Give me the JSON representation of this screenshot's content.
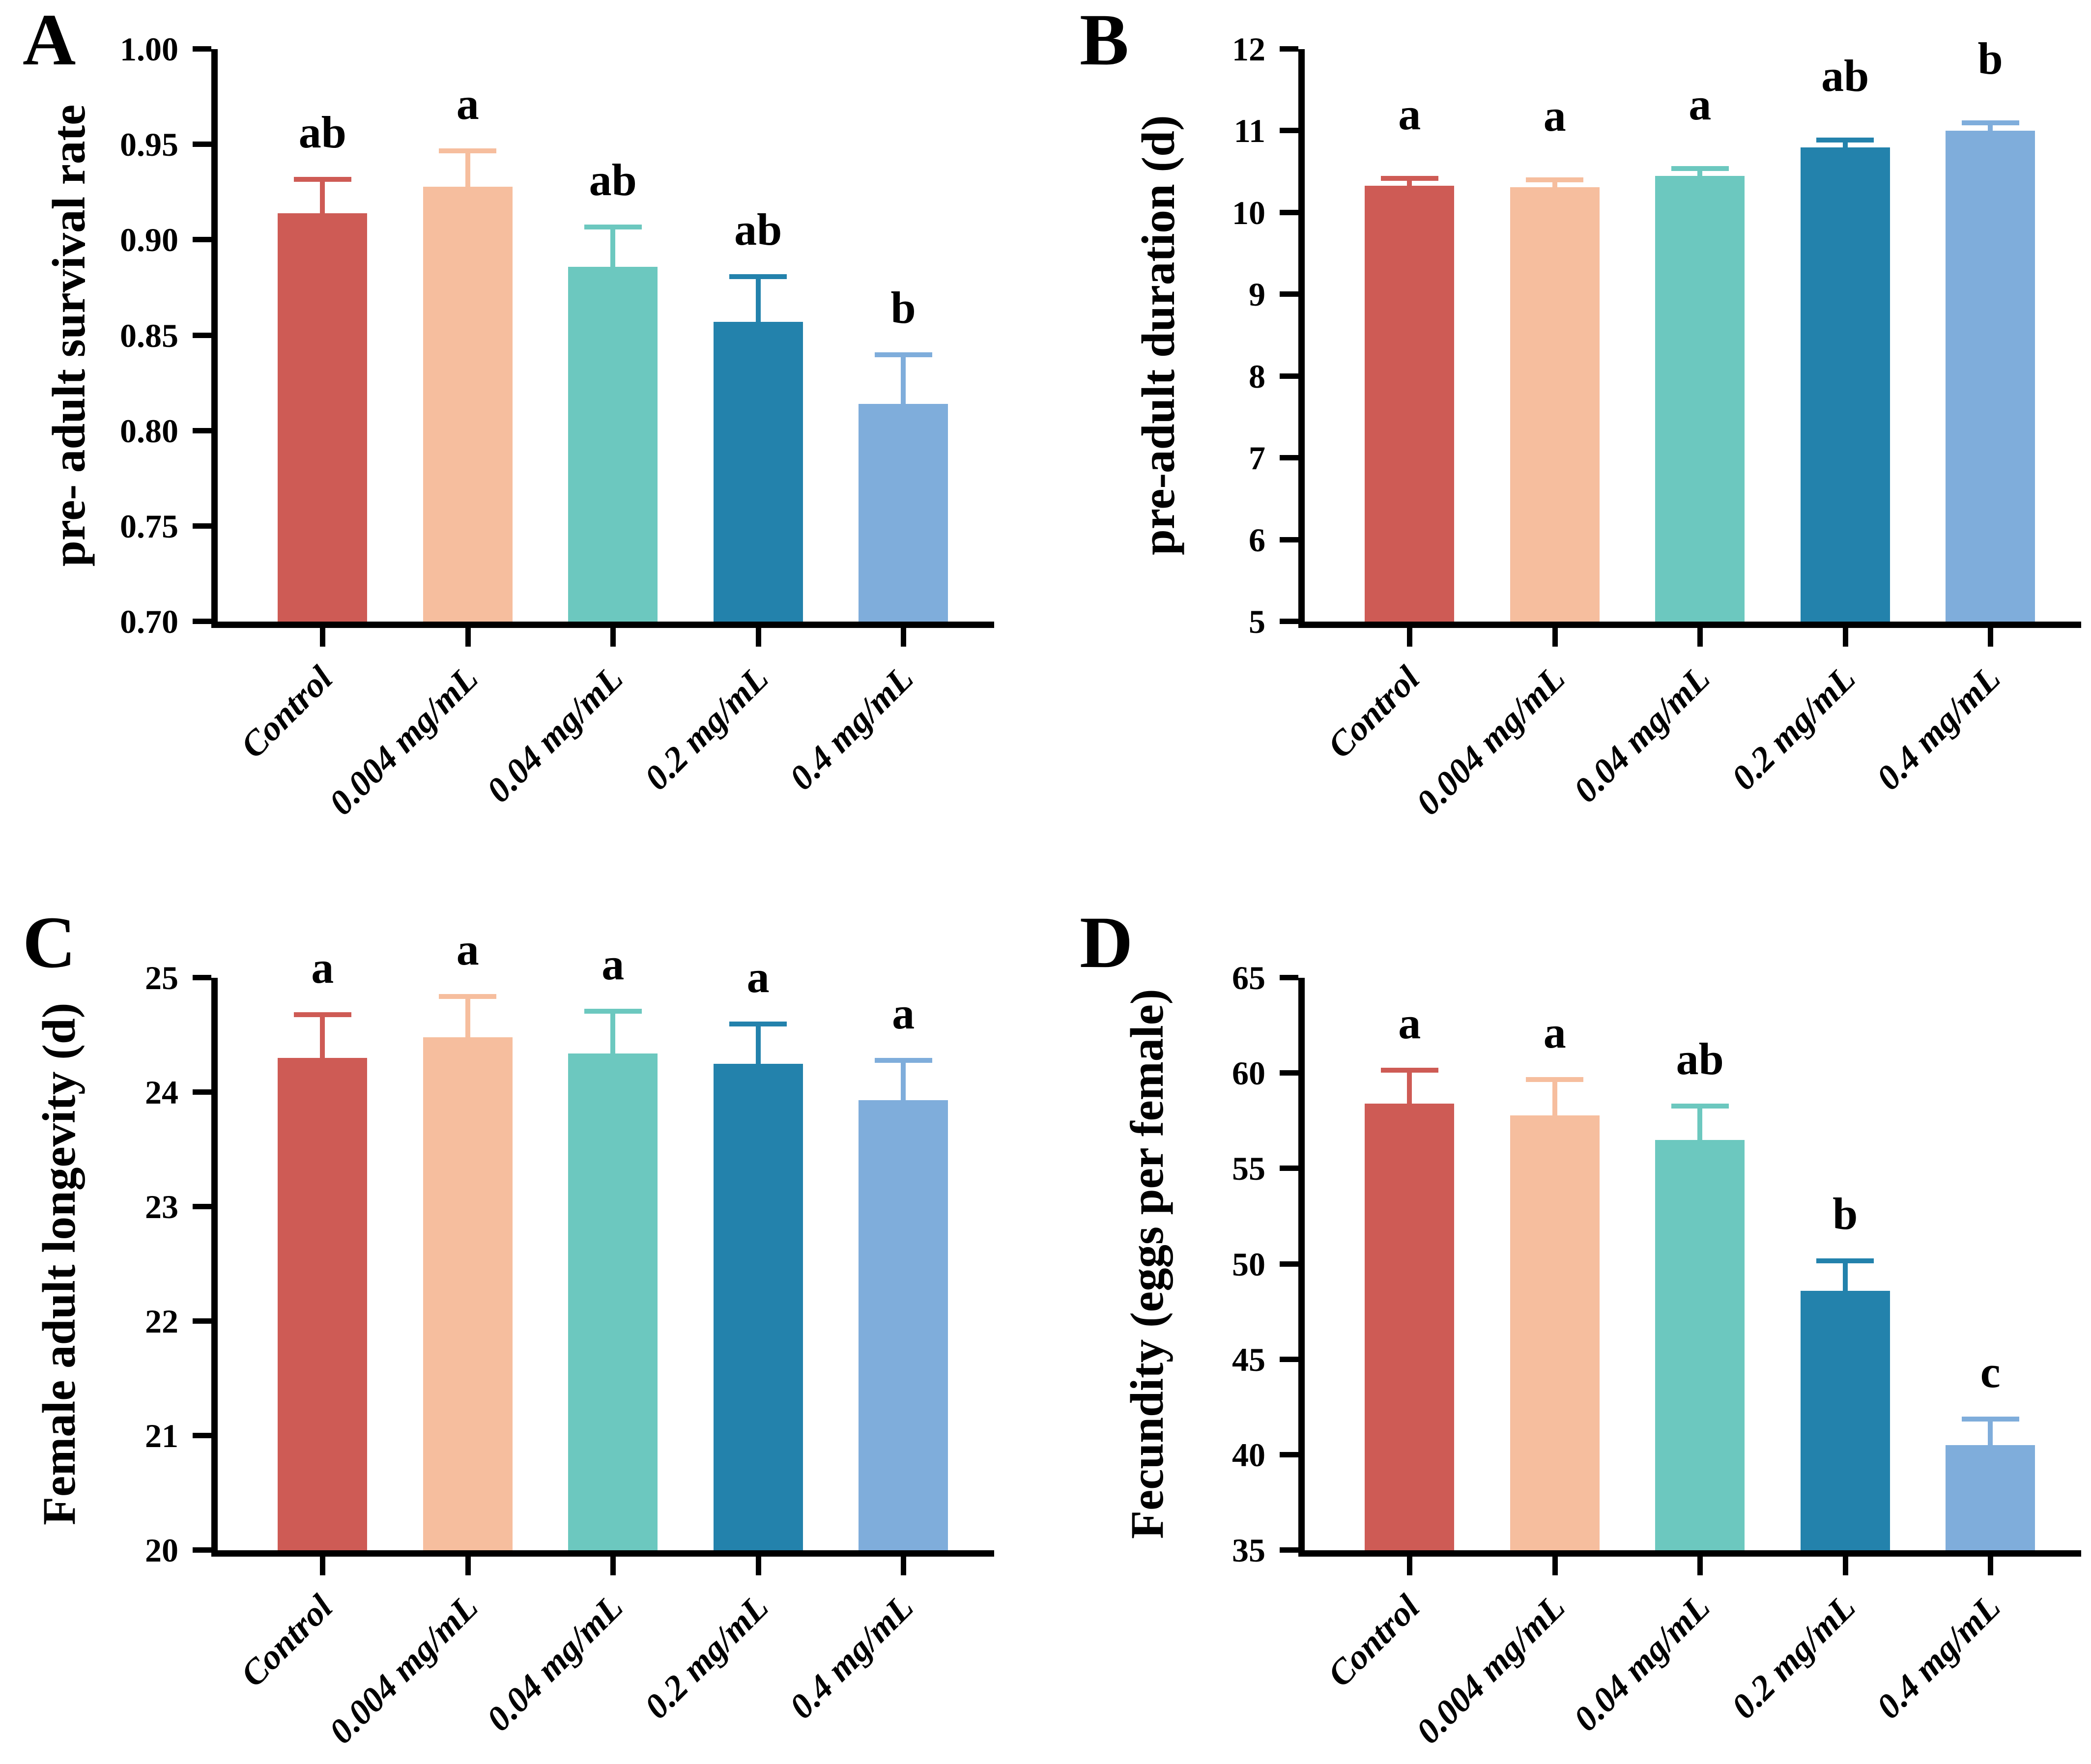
{
  "styles": {
    "background": "#ffffff",
    "axis_color": "#000000",
    "bar_colors": [
      "#CE5B55",
      "#F6BE9E",
      "#6CC8BF",
      "#2382AC",
      "#7FADDB"
    ]
  },
  "chart_data": [
    {
      "panel": "A",
      "type": "bar",
      "ylabel": "pre- adult survival rate",
      "categories": [
        "Control",
        "0.004 mg/mL",
        "0.04 mg/mL",
        "0.2 mg/mL",
        "0.4 mg/mL"
      ],
      "values": [
        0.914,
        0.928,
        0.886,
        0.857,
        0.814
      ],
      "errors_upper": [
        0.019,
        0.02,
        0.022,
        0.025,
        0.027
      ],
      "sig_letters": [
        "ab",
        "a",
        "ab",
        "ab",
        "b"
      ],
      "ylim": [
        0.7,
        1.0
      ],
      "ytick_step": 0.05,
      "ytick_decimals": 2,
      "grid": false,
      "legend": false
    },
    {
      "panel": "B",
      "type": "bar",
      "ylabel": "pre-adult duration (d)",
      "categories": [
        "Control",
        "0.004 mg/mL",
        "0.04 mg/mL",
        "0.2 mg/mL",
        "0.4 mg/mL"
      ],
      "values": [
        10.33,
        10.31,
        10.45,
        10.8,
        11.0
      ],
      "errors_upper": [
        0.12,
        0.12,
        0.12,
        0.12,
        0.13
      ],
      "sig_letters": [
        "a",
        "a",
        "a",
        "ab",
        "b"
      ],
      "ylim": [
        5,
        12
      ],
      "ytick_step": 1,
      "ytick_decimals": 0,
      "grid": false,
      "legend": false
    },
    {
      "panel": "C",
      "type": "bar",
      "ylabel": "Female adult longevity (d)",
      "categories": [
        "Control",
        "0.004 mg/mL",
        "0.04 mg/mL",
        "0.2 mg/mL",
        "0.4 mg/mL"
      ],
      "values": [
        24.3,
        24.48,
        24.34,
        24.25,
        23.93
      ],
      "errors_upper": [
        0.4,
        0.38,
        0.39,
        0.37,
        0.37
      ],
      "sig_letters": [
        "a",
        "a",
        "a",
        "a",
        "a"
      ],
      "ylim": [
        20,
        25
      ],
      "ytick_step": 1,
      "ytick_decimals": 0,
      "grid": false,
      "legend": false
    },
    {
      "panel": "D",
      "type": "bar",
      "ylabel": "Fecundity (eggs per female)",
      "categories": [
        "Control",
        "0.004 mg/mL",
        "0.04 mg/mL",
        "0.2 mg/mL",
        "0.4 mg/mL"
      ],
      "values": [
        58.4,
        57.8,
        56.5,
        48.6,
        40.5
      ],
      "errors_upper": [
        1.9,
        2.0,
        1.9,
        1.7,
        1.5
      ],
      "sig_letters": [
        "a",
        "a",
        "ab",
        "b",
        "c"
      ],
      "ylim": [
        35,
        65
      ],
      "ytick_step": 5,
      "ytick_decimals": 0,
      "grid": false,
      "legend": false
    }
  ]
}
